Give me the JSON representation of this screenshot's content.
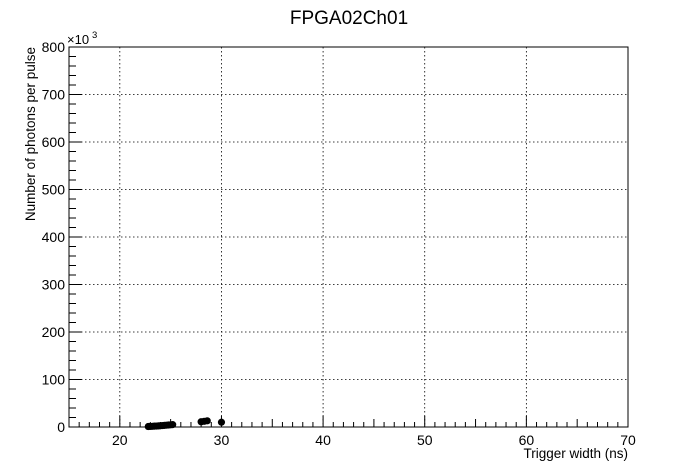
{
  "chart_data": {
    "type": "scatter",
    "title": "FPGA02Ch01",
    "xlabel": "Trigger width (ns)",
    "ylabel": "Number of photons per pulse",
    "y_multiplier_label": "×10",
    "y_multiplier_exponent": "3",
    "xlim": [
      15,
      70
    ],
    "ylim": [
      0,
      800
    ],
    "x_ticks": [
      20,
      30,
      40,
      50,
      60,
      70
    ],
    "y_ticks": [
      0,
      100,
      200,
      300,
      400,
      500,
      600,
      700,
      800
    ],
    "grid": true,
    "marker_color": "#000000",
    "series": [
      {
        "x": [
          22.8,
          23.0,
          23.2,
          23.4,
          23.6,
          23.8,
          24.0,
          24.2,
          24.4,
          24.6,
          24.8,
          25.0,
          25.2,
          28.0,
          28.3,
          28.6,
          30.0
        ],
        "y": [
          1.0,
          1.2,
          1.5,
          1.8,
          2.0,
          2.3,
          2.6,
          3.0,
          3.4,
          3.8,
          4.2,
          4.6,
          5.0,
          11.0,
          12.0,
          13.0,
          10.0
        ]
      }
    ]
  }
}
